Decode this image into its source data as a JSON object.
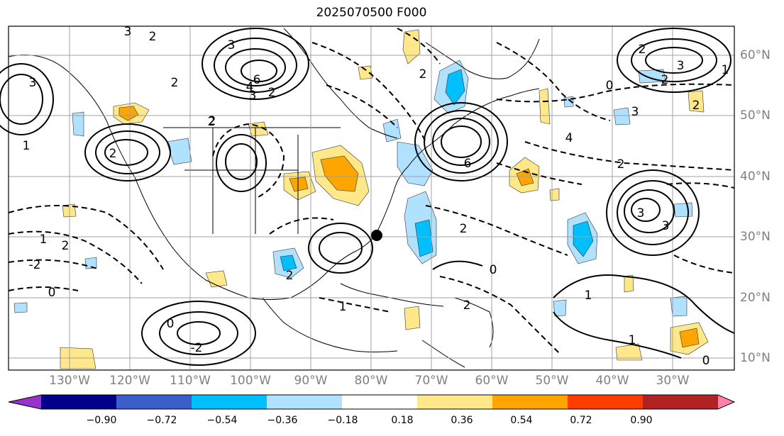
{
  "title": "2025070500 F000",
  "lon_labels": [
    "130°W",
    "120°W",
    "110°W",
    "100°W",
    "90°W",
    "80°W",
    "70°W",
    "60°W",
    "50°W",
    "40°W",
    "30°W"
  ],
  "lat_labels": [
    "60°N",
    "50°N",
    "40°N",
    "30°N",
    "20°N",
    "10°N"
  ],
  "colorbar": {
    "colors": [
      "#9932cc",
      "#00008b",
      "#3a5fcd",
      "#00bfff",
      "#b0e2ff",
      "#ffffff",
      "#ffe88a",
      "#ffa500",
      "#ff3c00",
      "#b22222",
      "#ff82ab"
    ],
    "ticks": [
      "−0.90",
      "−0.72",
      "−0.54",
      "−0.36",
      "−0.18",
      "0.18",
      "0.36",
      "0.54",
      "0.72",
      "0.90"
    ]
  },
  "contour_labels": [
    {
      "t": "3"
    },
    {
      "t": "2"
    },
    {
      "t": "3"
    },
    {
      "t": "3"
    },
    {
      "t": "6"
    },
    {
      "t": "2"
    },
    {
      "t": "3"
    },
    {
      "t": "2"
    },
    {
      "t": "4"
    },
    {
      "t": "2"
    },
    {
      "t": "2"
    },
    {
      "t": "2"
    },
    {
      "t": "6"
    },
    {
      "t": "2"
    },
    {
      "t": "3"
    },
    {
      "t": "0"
    },
    {
      "t": "3"
    },
    {
      "t": "1"
    },
    {
      "t": "2"
    },
    {
      "t": "2"
    },
    {
      "t": "1"
    },
    {
      "t": "2"
    },
    {
      "t": "4"
    },
    {
      "t": "2"
    },
    {
      "t": "3"
    },
    {
      "t": "2"
    },
    {
      "t": "1"
    },
    {
      "t": "2"
    },
    {
      "t": "0"
    },
    {
      "t": "-2"
    },
    {
      "t": "0"
    },
    {
      "t": "1"
    },
    {
      "t": "2"
    },
    {
      "t": "-2"
    },
    {
      "t": "2"
    },
    {
      "t": "0"
    },
    {
      "t": "1"
    },
    {
      "t": "1"
    },
    {
      "t": "0"
    },
    {
      "t": "3"
    }
  ],
  "marker": {
    "label": "point-marker"
  }
}
